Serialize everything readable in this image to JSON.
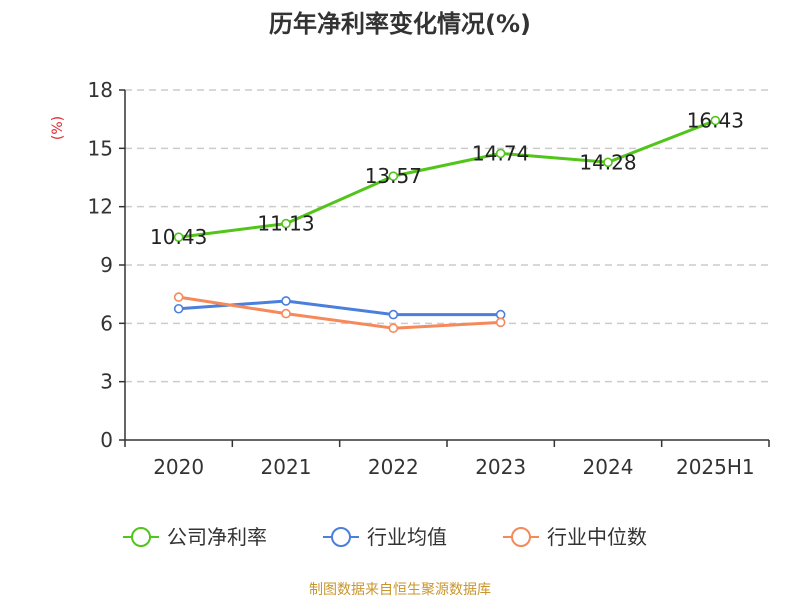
{
  "chart_data": {
    "type": "line",
    "title": "历年净利率变化情况(%)",
    "y_unit_label": "(%)",
    "categories": [
      "2020",
      "2021",
      "2022",
      "2023",
      "2024",
      "2025H1"
    ],
    "yticks": [
      "0",
      "3",
      "6",
      "9",
      "12",
      "15",
      "18"
    ],
    "ylim": [
      0,
      18
    ],
    "grid": true,
    "legend_position": "bottom",
    "series": [
      {
        "name": "公司净利率",
        "color": "#52c41a",
        "values": [
          10.43,
          11.13,
          13.57,
          14.74,
          14.28,
          16.43
        ],
        "labels": [
          "10.43",
          "11.13",
          "13.57",
          "14.74",
          "14.28",
          "16.43"
        ]
      },
      {
        "name": "行业均值",
        "color": "#4a7fdc",
        "values": [
          6.75,
          7.15,
          6.45,
          6.45,
          null,
          null
        ],
        "labels": null
      },
      {
        "name": "行业中位数",
        "color": "#f5895a",
        "values": [
          7.35,
          6.5,
          5.75,
          6.05,
          null,
          null
        ],
        "labels": null
      }
    ]
  },
  "source_text": "制图数据来自恒生聚源数据库"
}
